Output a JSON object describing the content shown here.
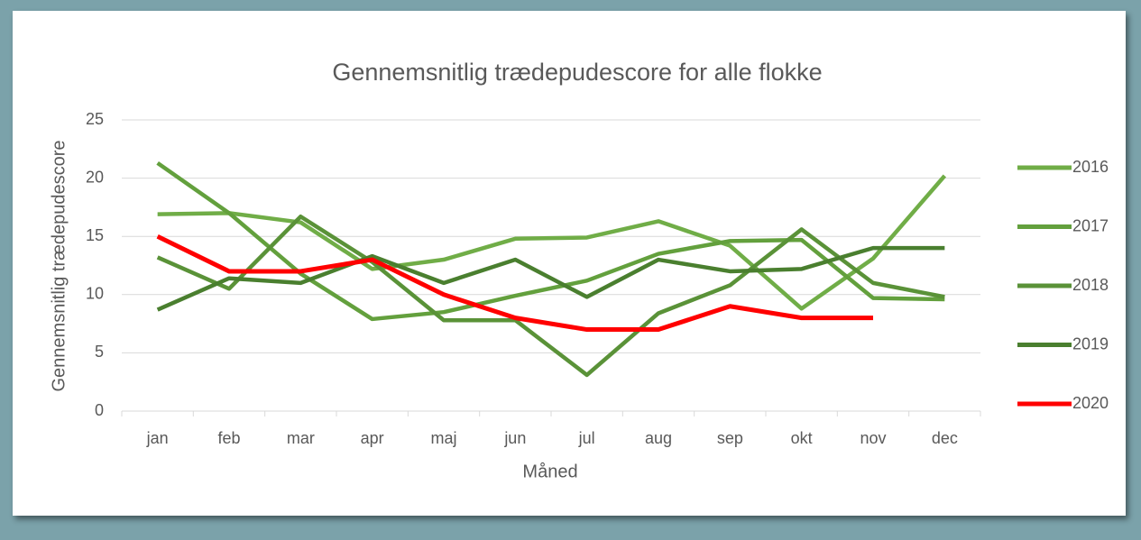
{
  "chart_data": {
    "type": "line",
    "title": "Gennemsnitlig trædepudescore for alle flokke",
    "x_label": "Måned",
    "y_label": "Gennemsnitlig trædepudescore",
    "categories": [
      "jan",
      "feb",
      "mar",
      "apr",
      "maj",
      "jun",
      "jul",
      "aug",
      "sep",
      "okt",
      "nov",
      "dec"
    ],
    "series": [
      {
        "name": "2016",
        "color": "#70ad47",
        "values": [
          16.9,
          17.0,
          16.2,
          12.2,
          13.0,
          14.8,
          14.9,
          16.3,
          14.2,
          8.8,
          13.1,
          20.2
        ]
      },
      {
        "name": "2017",
        "color": "#63a03d",
        "values": [
          21.3,
          17.0,
          11.8,
          7.9,
          8.5,
          9.9,
          11.2,
          13.5,
          14.6,
          14.7,
          9.7,
          9.6
        ]
      },
      {
        "name": "2018",
        "color": "#5a9238",
        "values": [
          13.2,
          10.5,
          16.7,
          12.8,
          7.8,
          7.8,
          3.1,
          8.4,
          10.8,
          15.6,
          11.0,
          9.8
        ]
      },
      {
        "name": "2019",
        "color": "#4a7f2f",
        "values": [
          8.7,
          11.4,
          11.0,
          13.3,
          11.0,
          13.0,
          9.8,
          13.0,
          12.0,
          12.2,
          14.0,
          14.0
        ]
      },
      {
        "name": "2020",
        "color": "#ff0000",
        "values": [
          15,
          12,
          12,
          13,
          10,
          8,
          7,
          7,
          9,
          8,
          8,
          null
        ]
      }
    ],
    "ylim": [
      0,
      25
    ],
    "yticks": [
      0,
      5,
      10,
      15,
      20,
      25
    ],
    "grid": true,
    "legend": "right"
  }
}
